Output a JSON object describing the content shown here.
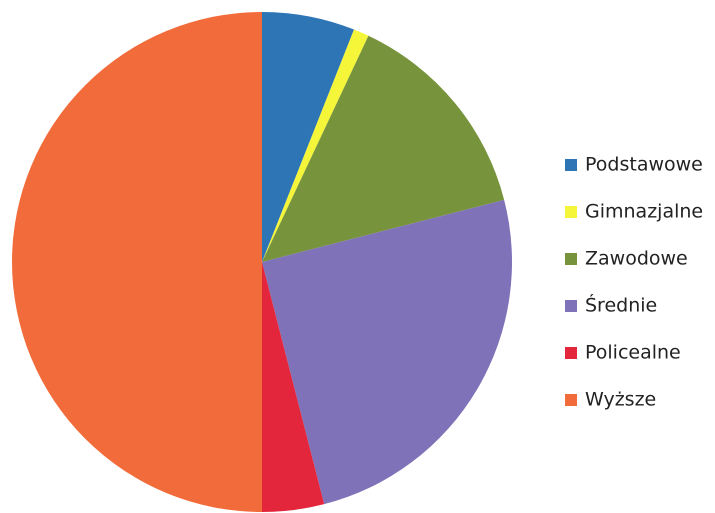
{
  "chart_data": {
    "type": "pie",
    "categories": [
      "Podstawowe",
      "Gimnazjalne",
      "Zawodowe",
      "Średnie",
      "Policealne",
      "Wyższe"
    ],
    "values": [
      6,
      1,
      14,
      25,
      4,
      50
    ],
    "colors": [
      "#2e75b6",
      "#f5f53a",
      "#77933c",
      "#7f72b8",
      "#e3263b",
      "#f26b3a"
    ],
    "legend": "right"
  }
}
